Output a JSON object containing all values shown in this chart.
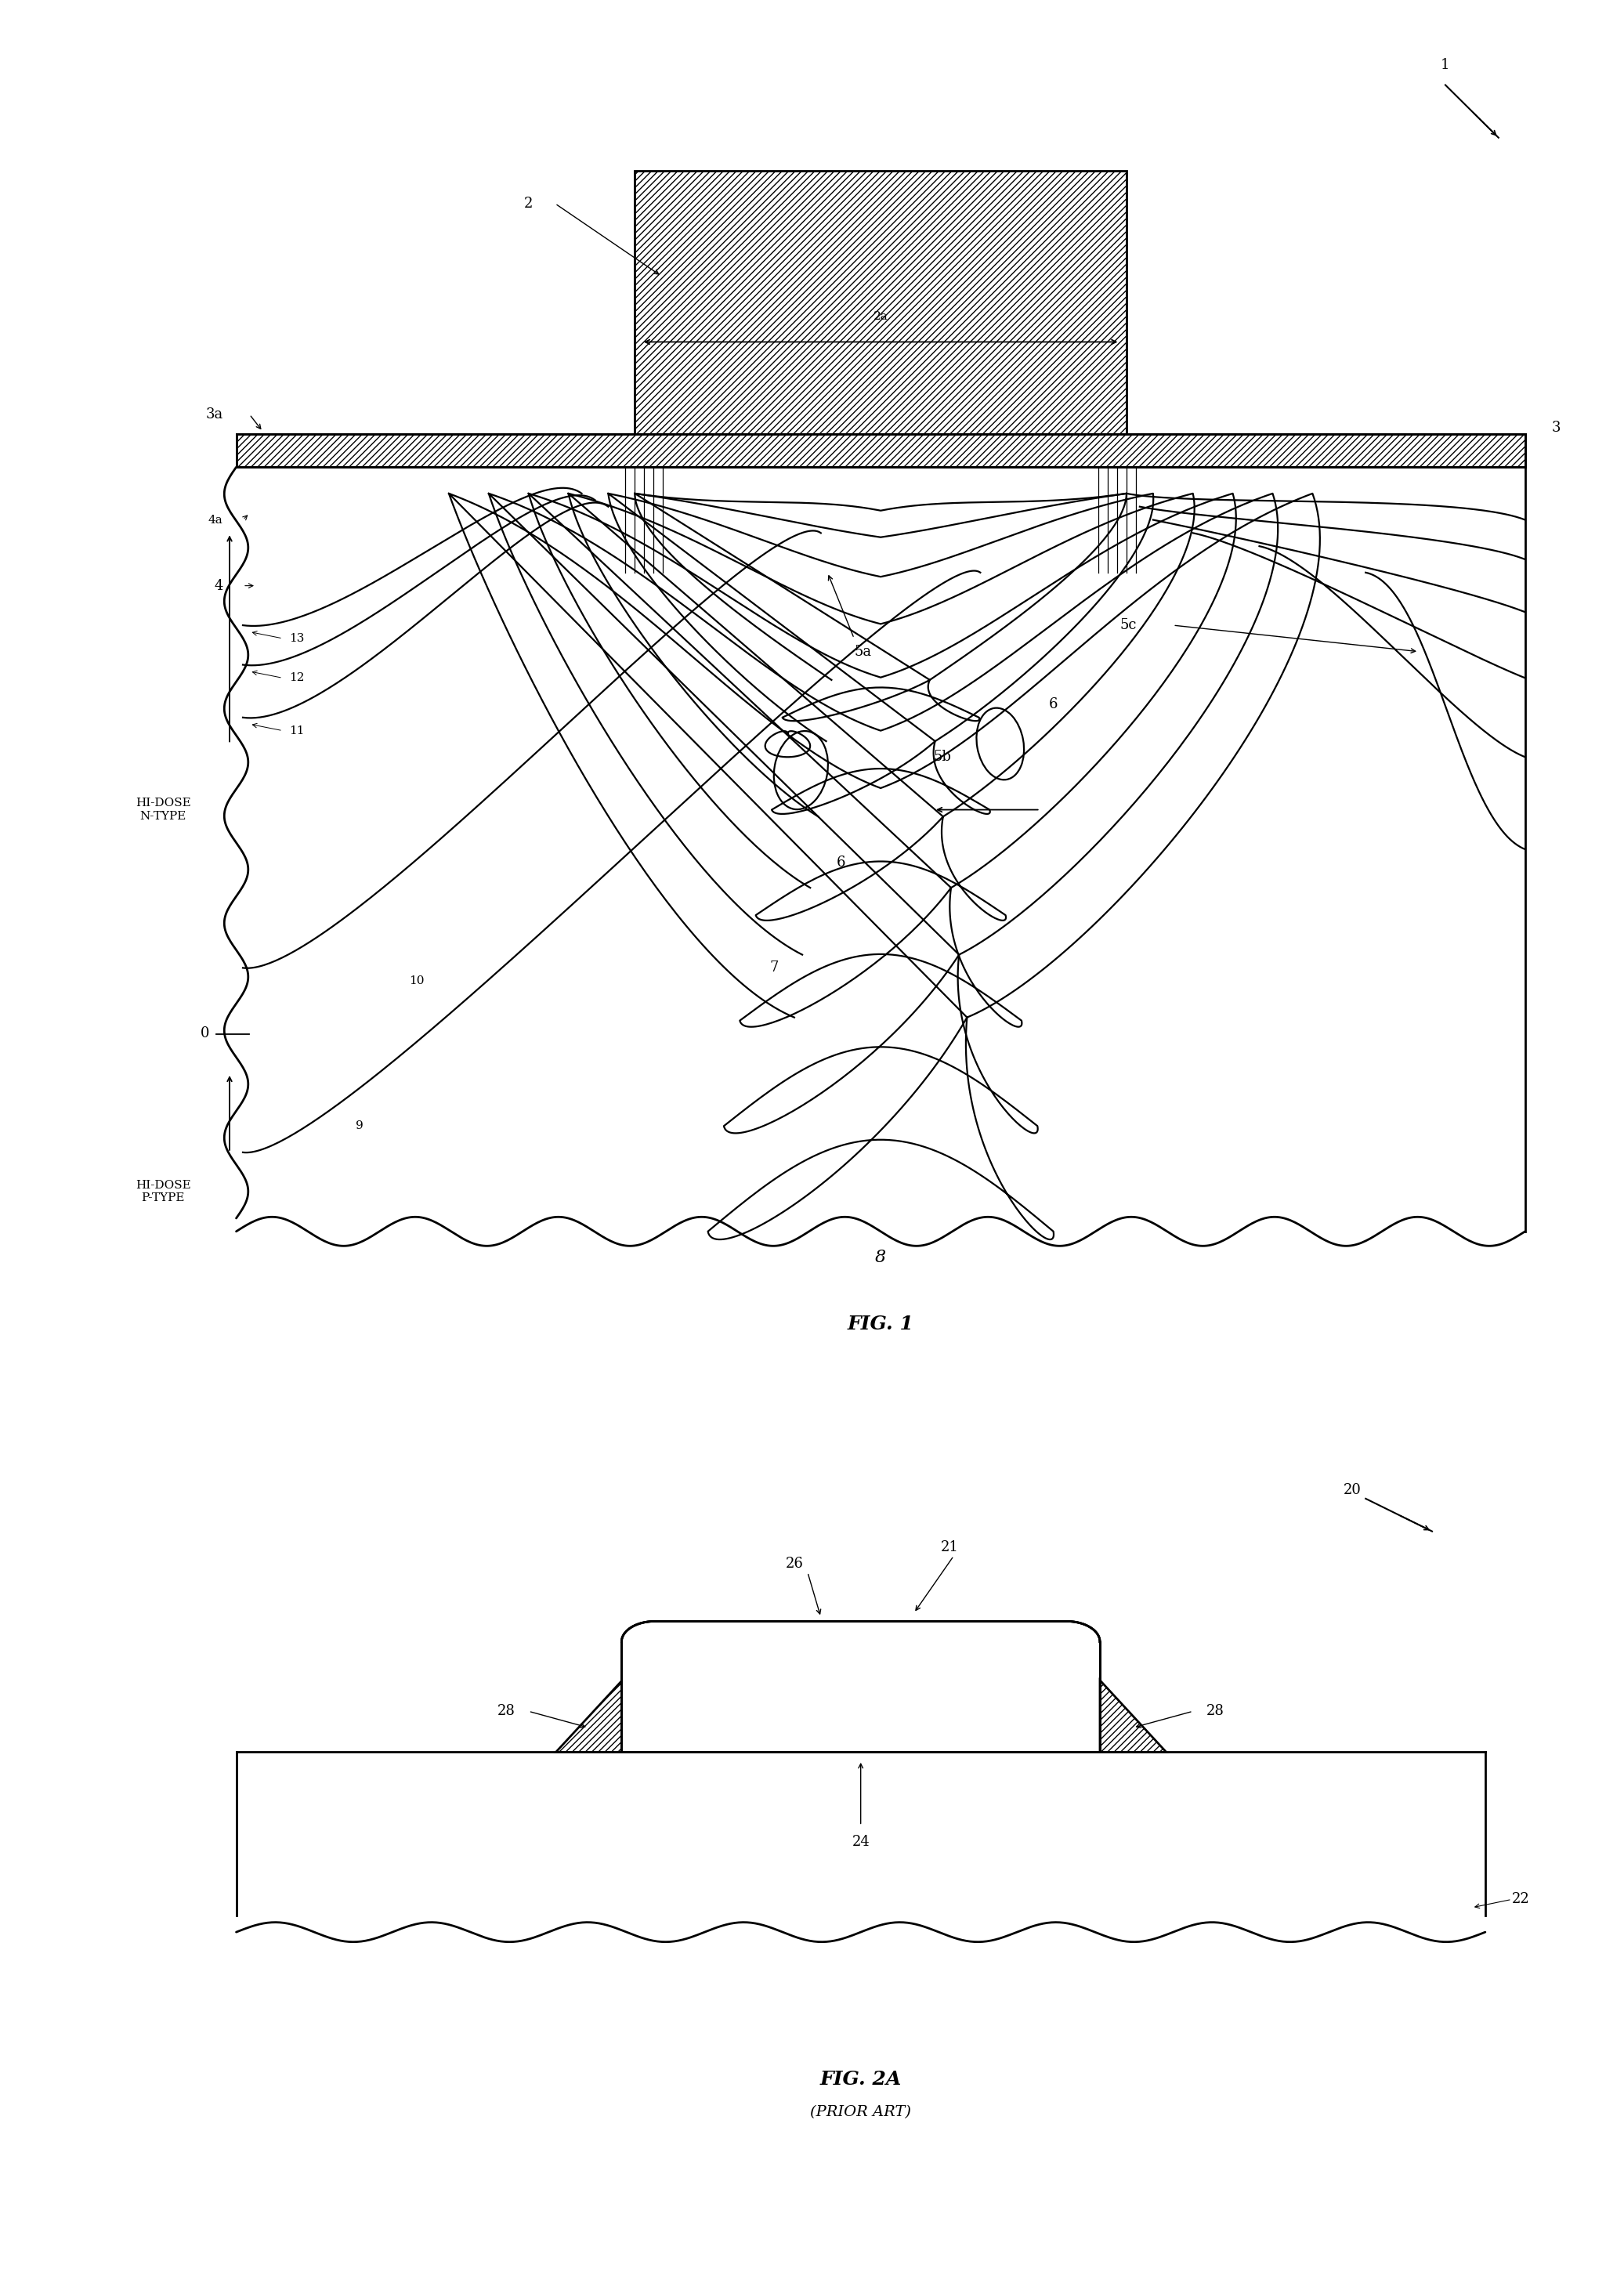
{
  "fig_width": 20.73,
  "fig_height": 29.0,
  "bg_color": "#ffffff",
  "fig1": {
    "title": "FIG. 1",
    "label_1": "1",
    "label_2": "2",
    "label_2a": "2a",
    "label_3": "3",
    "label_3a": "3a",
    "label_4": "4",
    "label_4a": "4a",
    "label_5a": "5a",
    "label_5b": "5b",
    "label_5c": "5c",
    "label_6a": "6",
    "label_6b": "6",
    "label_7": "7",
    "label_8": "8",
    "label_9": "9",
    "label_10": "10",
    "label_11": "11",
    "label_12": "12",
    "label_13": "13",
    "label_0": "0",
    "label_hi_n": "HI-DOSE\nN-TYPE",
    "label_hi_p": "HI-DOSE\nP-TYPE"
  },
  "fig2a": {
    "title": "FIG. 2A",
    "subtitle": "(PRIOR ART)",
    "label_20": "20",
    "label_21": "21",
    "label_22": "22",
    "label_24": "24",
    "label_26": "26",
    "label_28l": "28",
    "label_28r": "28"
  }
}
